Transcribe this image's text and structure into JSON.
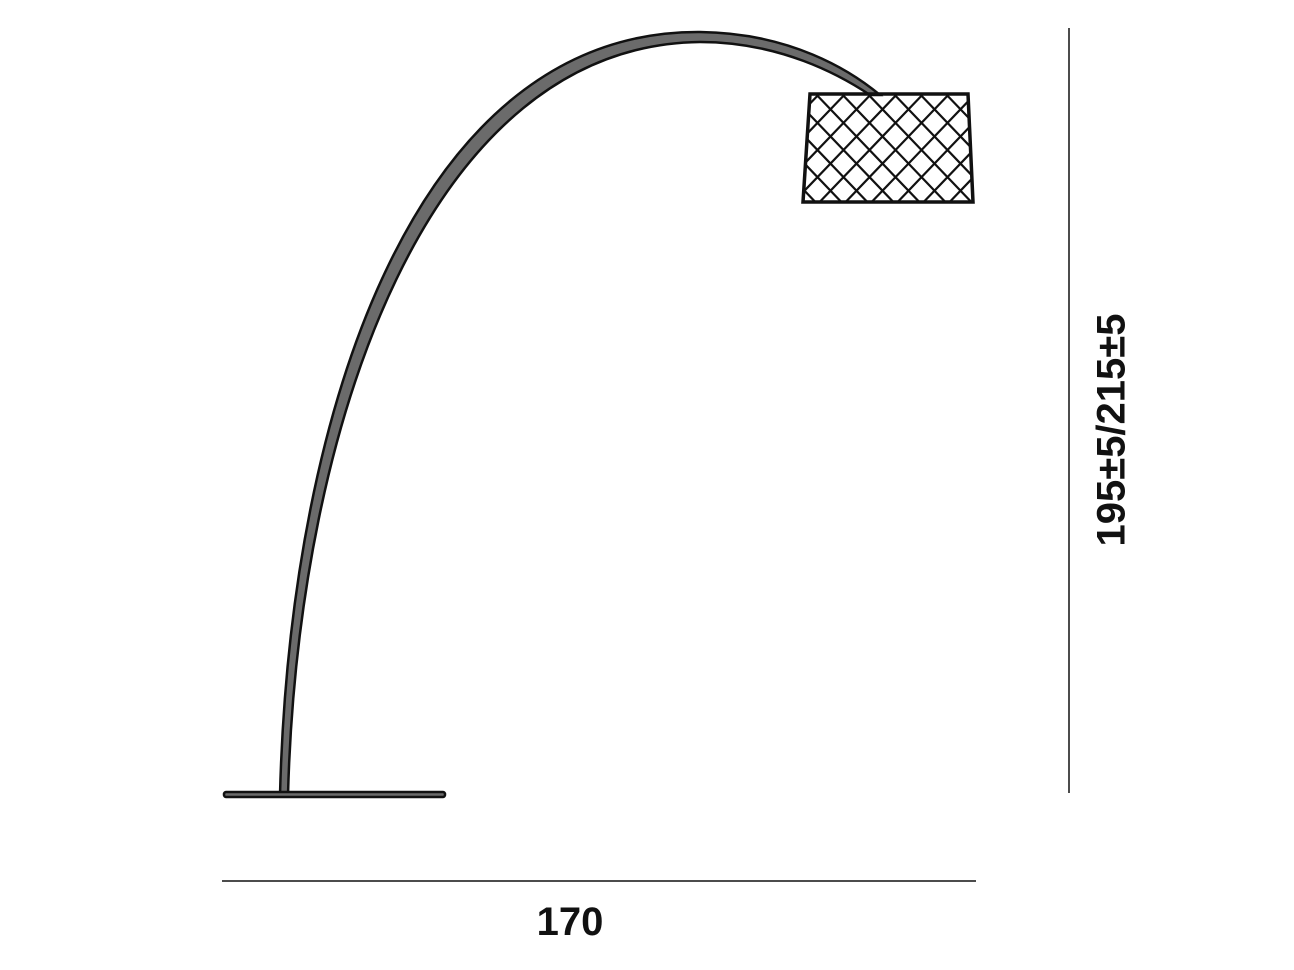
{
  "dimensions": {
    "width_label": "170",
    "height_label": "195±5/215±5"
  },
  "colors": {
    "line": "#111111",
    "fill": "#6b6b6b"
  }
}
